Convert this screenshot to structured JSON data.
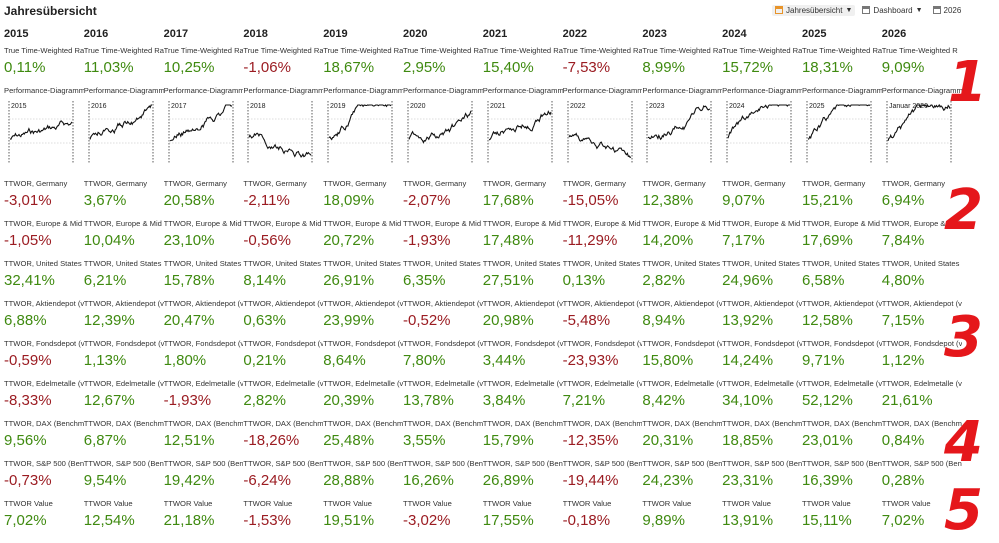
{
  "page": {
    "title": "Jahresübersicht"
  },
  "toolbar": {
    "items": [
      {
        "label": "Jahresübersicht",
        "icon": "calendar-icon",
        "active": true
      },
      {
        "label": "Dashboard",
        "icon": "calendar-icon",
        "active": false
      },
      {
        "label": "2026",
        "icon": "calendar-icon",
        "active": false
      }
    ]
  },
  "colors": {
    "positive": "#3f8a10",
    "negative": "#9b1c22",
    "annotation": "#e5171b"
  },
  "columns": [
    {
      "year": "2015",
      "twr_label": "True Time-Weighted Ra",
      "twr": "0,11%",
      "chart_label": "Performance-Diagramm",
      "chart_tag": "2015",
      "rows": [
        "-3,01%",
        "-1,05%",
        "32,41%",
        "6,88%",
        "-0,59%",
        "-8,33%",
        "9,56%",
        "-0,73%",
        "7,02%"
      ]
    },
    {
      "year": "2016",
      "twr_label": "True Time-Weighted Ra",
      "twr": "11,03%",
      "chart_label": "Performance-Diagramm",
      "chart_tag": "2016",
      "rows": [
        "3,67%",
        "10,04%",
        "6,21%",
        "12,39%",
        "1,13%",
        "12,67%",
        "6,87%",
        "9,54%",
        "12,54%"
      ]
    },
    {
      "year": "2017",
      "twr_label": "True Time-Weighted Ra",
      "twr": "10,25%",
      "chart_label": "Performance-Diagramm",
      "chart_tag": "2017",
      "rows": [
        "20,58%",
        "23,10%",
        "15,78%",
        "20,47%",
        "1,80%",
        "-1,93%",
        "12,51%",
        "19,42%",
        "21,18%"
      ]
    },
    {
      "year": "2018",
      "twr_label": "True Time-Weighted Ra",
      "twr": "-1,06%",
      "chart_label": "Performance-Diagramm",
      "chart_tag": "2018",
      "rows": [
        "-2,11%",
        "-0,56%",
        "8,14%",
        "0,63%",
        "0,21%",
        "2,82%",
        "-18,26%",
        "-6,24%",
        "-1,53%"
      ]
    },
    {
      "year": "2019",
      "twr_label": "True Time-Weighted Ra",
      "twr": "18,67%",
      "chart_label": "Performance-Diagramm",
      "chart_tag": "2019",
      "rows": [
        "18,09%",
        "20,72%",
        "26,91%",
        "23,99%",
        "8,64%",
        "20,39%",
        "25,48%",
        "28,88%",
        "19,51%"
      ]
    },
    {
      "year": "2020",
      "twr_label": "True Time-Weighted Ra",
      "twr": "2,95%",
      "chart_label": "Performance-Diagramm",
      "chart_tag": "2020",
      "rows": [
        "-2,07%",
        "-1,93%",
        "6,35%",
        "-0,52%",
        "7,80%",
        "13,78%",
        "3,55%",
        "16,26%",
        "-3,02%"
      ]
    },
    {
      "year": "2021",
      "twr_label": "True Time-Weighted Ra",
      "twr": "15,40%",
      "chart_label": "Performance-Diagramm",
      "chart_tag": "2021",
      "rows": [
        "17,68%",
        "17,48%",
        "27,51%",
        "20,98%",
        "3,44%",
        "3,84%",
        "15,79%",
        "26,89%",
        "17,55%"
      ]
    },
    {
      "year": "2022",
      "twr_label": "True Time-Weighted Ra",
      "twr": "-7,53%",
      "chart_label": "Performance-Diagramm",
      "chart_tag": "2022",
      "rows": [
        "-15,05%",
        "-11,29%",
        "0,13%",
        "-5,48%",
        "-23,93%",
        "7,21%",
        "-12,35%",
        "-19,44%",
        "-0,18%"
      ]
    },
    {
      "year": "2023",
      "twr_label": "True Time-Weighted Ra",
      "twr": "8,99%",
      "chart_label": "Performance-Diagramm",
      "chart_tag": "2023",
      "rows": [
        "12,38%",
        "14,20%",
        "2,82%",
        "8,94%",
        "15,80%",
        "8,42%",
        "20,31%",
        "24,23%",
        "9,89%"
      ]
    },
    {
      "year": "2024",
      "twr_label": "True Time-Weighted Ra",
      "twr": "15,72%",
      "chart_label": "Performance-Diagramm",
      "chart_tag": "2024",
      "rows": [
        "9,07%",
        "7,17%",
        "24,96%",
        "13,92%",
        "14,24%",
        "34,10%",
        "18,85%",
        "23,31%",
        "13,91%"
      ]
    },
    {
      "year": "2025",
      "twr_label": "True Time-Weighted Ra",
      "twr": "18,31%",
      "chart_label": "Performance-Diagramm",
      "chart_tag": "2025",
      "rows": [
        "15,21%",
        "17,69%",
        "6,58%",
        "12,58%",
        "9,71%",
        "52,12%",
        "23,01%",
        "16,39%",
        "15,11%"
      ]
    },
    {
      "year": "2026",
      "twr_label": "True Time-Weighted R",
      "twr": "9,09%",
      "chart_label": "Performance-Diagramm",
      "chart_tag": "Januar 2026",
      "rows": [
        "6,94%",
        "7,84%",
        "4,80%",
        "7,15%",
        "1,12%",
        "21,61%",
        "0,84%",
        "0,28%",
        "7,02%"
      ]
    }
  ],
  "row_labels": [
    "TTWOR, Germany",
    "TTWOR, Europe & Mid",
    "TTWOR, United States",
    "TTWOR, Aktiendepot (v",
    "TTWOR, Fondsdepot (v",
    "TTWOR, Edelmetalle (v",
    "TTWOR, DAX (Benchm",
    "TTWOR, S&P 500 (Benc",
    "TTWOR Value"
  ],
  "annotations": [
    "1",
    "2",
    "3",
    "4",
    "5"
  ]
}
